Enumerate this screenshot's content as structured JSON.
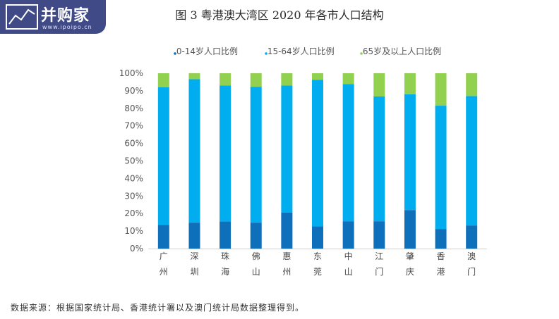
{
  "watermark": {
    "brand": "并购家",
    "url": "www.ipoipo.cn"
  },
  "source_note": "数据来源：根据国家统计局、香港统计署以及澳门统计局数据整理得到。",
  "chart_data": {
    "type": "bar",
    "stacked": true,
    "title": "图 3  粤港澳大湾区 2020 年各市人口结构",
    "categories": [
      "广州",
      "深圳",
      "珠海",
      "佛山",
      "惠州",
      "东莞",
      "中山",
      "江门",
      "肇庆",
      "香港",
      "澳门"
    ],
    "series": [
      {
        "name": ".0-14岁人口比例",
        "color": "#0e6fba",
        "values": [
          13.5,
          14.8,
          15.5,
          14.8,
          20.5,
          12.7,
          15.6,
          15.6,
          22.0,
          11.2,
          13.2
        ]
      },
      {
        "name": ".15-64岁人口比例",
        "color": "#00aeef",
        "values": [
          78.5,
          81.8,
          77.5,
          77.5,
          72.5,
          83.5,
          78.2,
          71.2,
          66.0,
          70.3,
          73.8
        ]
      },
      {
        "name": ".65岁及以上人口比例",
        "color": "#92d050",
        "values": [
          8.0,
          3.4,
          7.0,
          7.7,
          7.0,
          3.8,
          6.2,
          13.2,
          12.0,
          18.5,
          13.0
        ]
      }
    ],
    "yticks": [
      "0%",
      "10%",
      "20%",
      "30%",
      "40%",
      "50%",
      "60%",
      "70%",
      "80%",
      "90%",
      "100%"
    ],
    "ylim": [
      0,
      100
    ],
    "legend_position": "top"
  }
}
